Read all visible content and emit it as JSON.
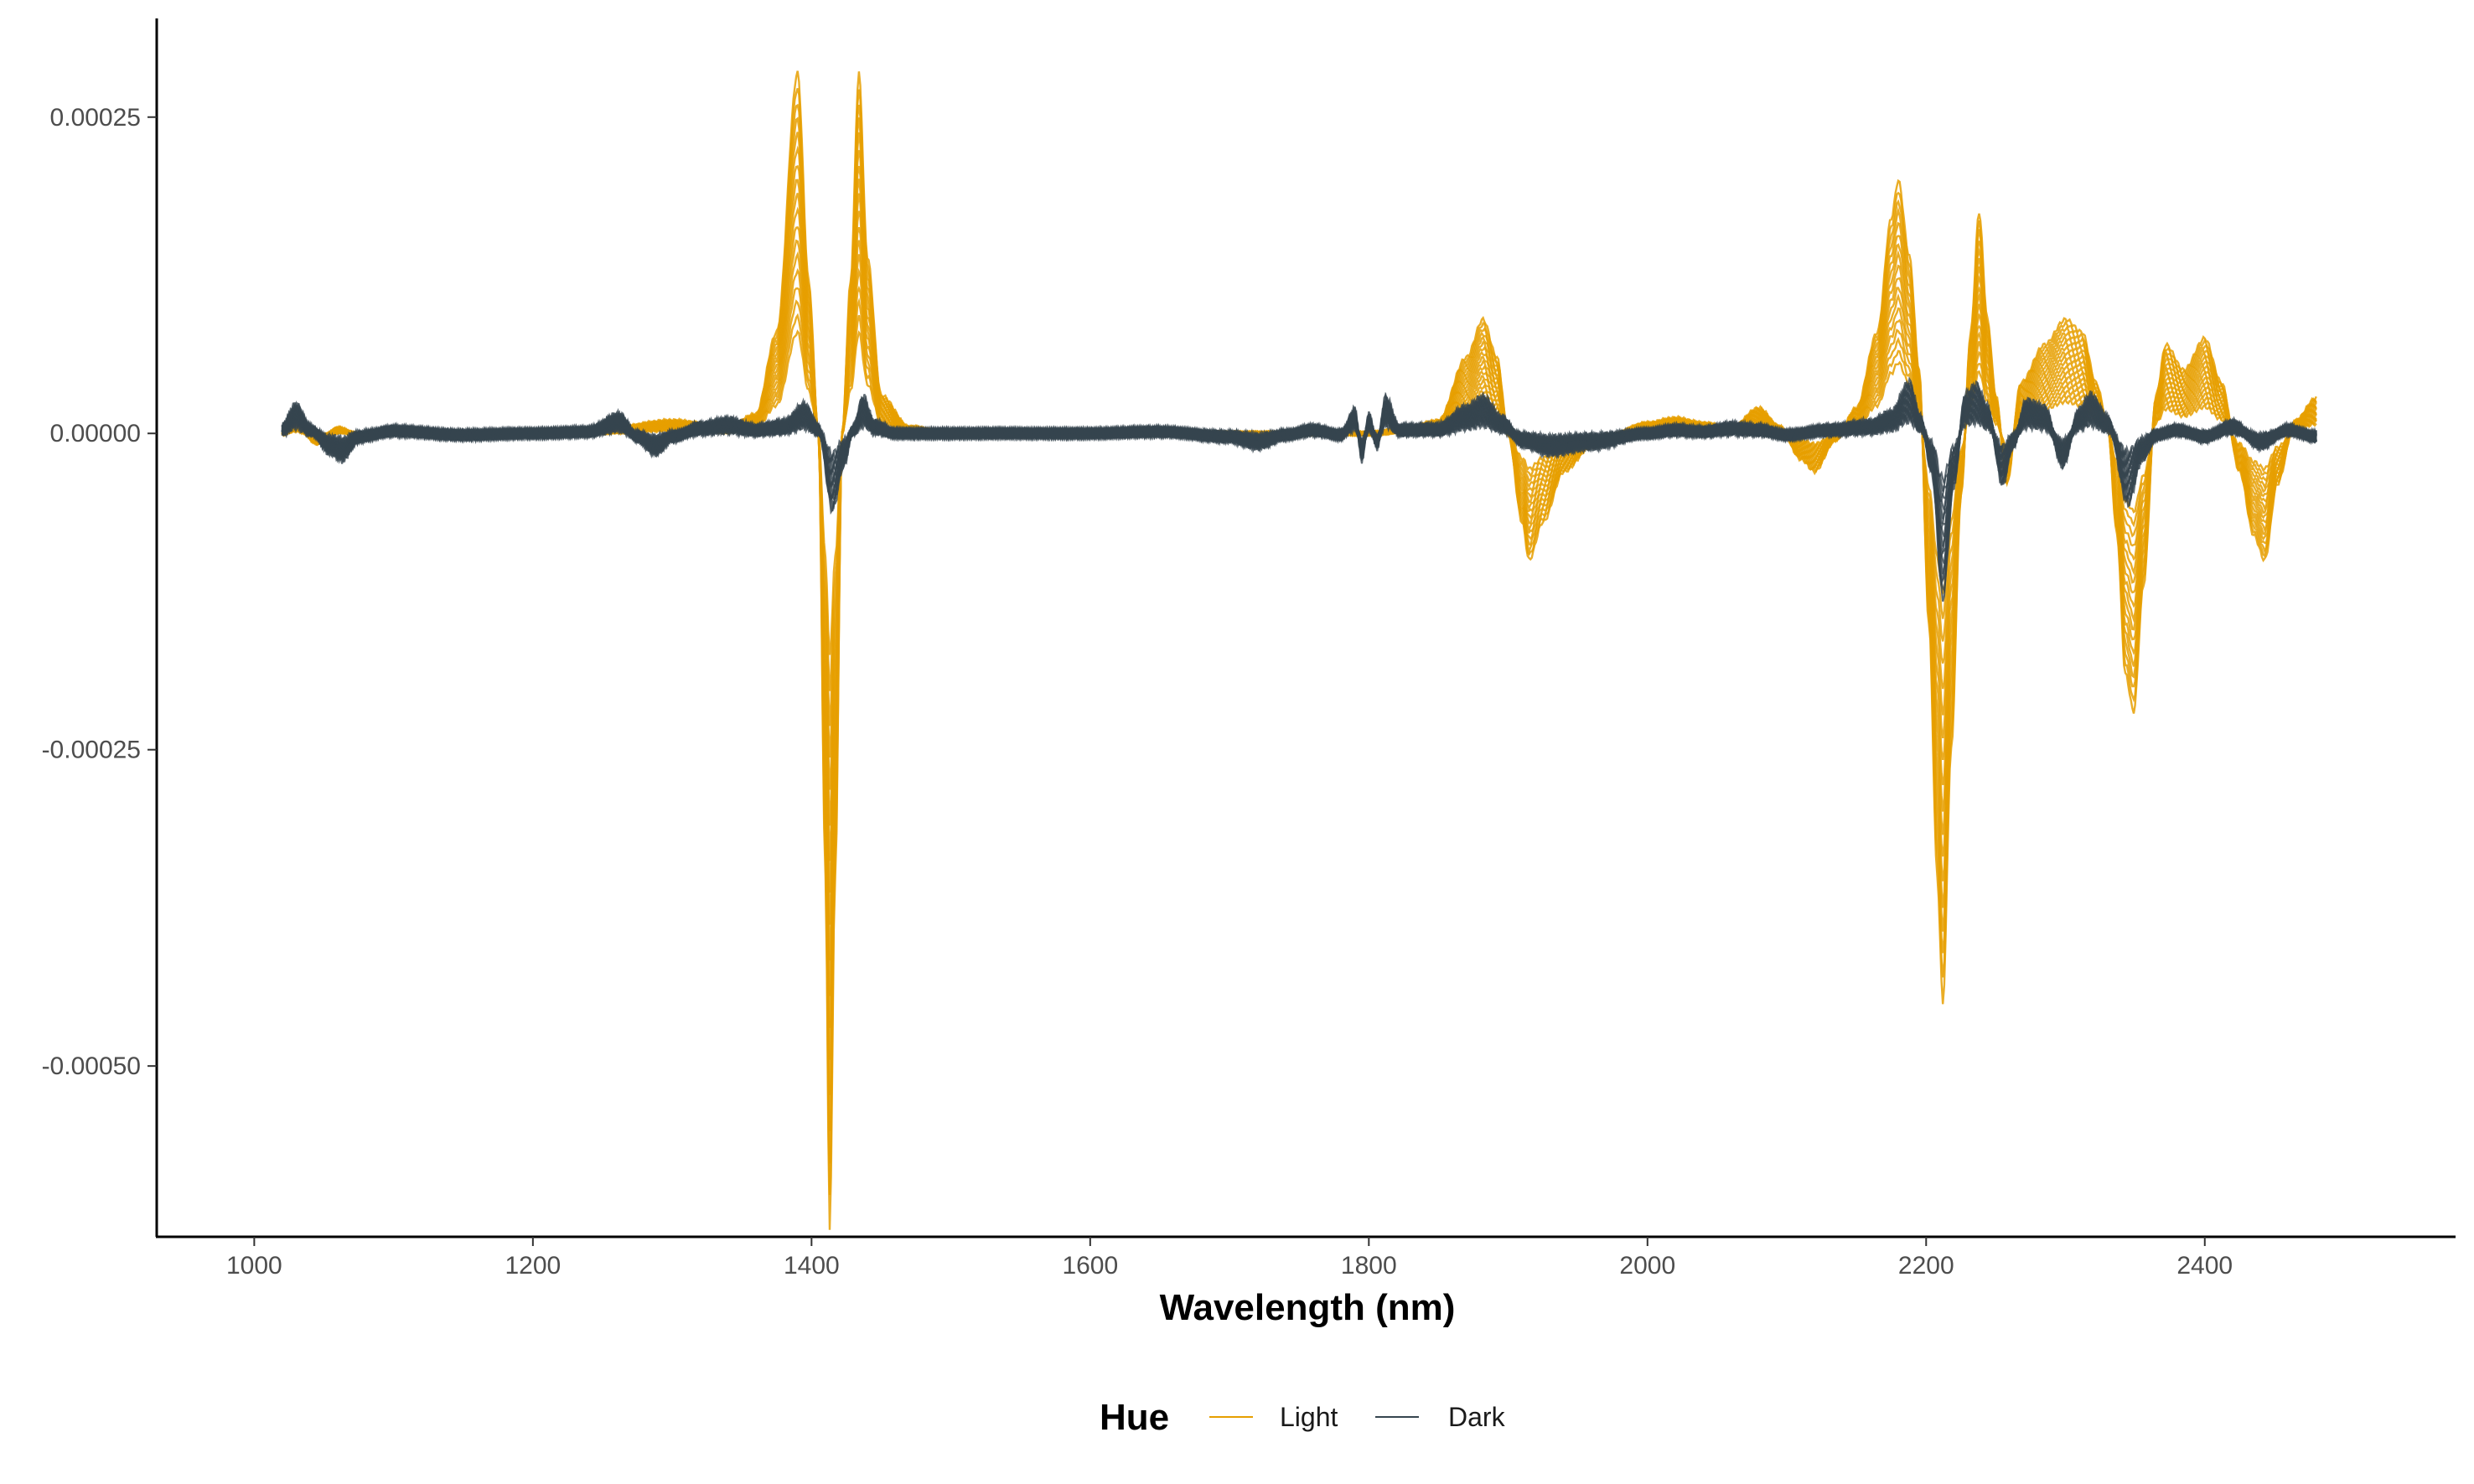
{
  "chart_data": {
    "type": "line",
    "title": "",
    "xlabel": "Wavelength (nm)",
    "ylabel": "",
    "xlim": [
      930,
      2580
    ],
    "ylim": [
      -0.000635,
      0.000328
    ],
    "x_ticks": [
      1000,
      1200,
      1400,
      1600,
      1800,
      2000,
      2200,
      2400
    ],
    "x_tick_labels": [
      "1000",
      "1200",
      "1400",
      "1600",
      "1800",
      "2000",
      "2200",
      "2400"
    ],
    "y_ticks": [
      0.00025,
      0.0,
      -0.00025,
      -0.0005
    ],
    "y_tick_labels": [
      "0.00025",
      "0.00000",
      "-0.00025",
      "-0.00050"
    ],
    "grid": false,
    "legend": {
      "title": "Hue",
      "position": "bottom",
      "entries": [
        "Light",
        "Dark"
      ]
    },
    "series": [
      {
        "name": "Light",
        "color": "#E69F00",
        "points": [
          [
            1020,
            0
          ],
          [
            1030,
            8e-06
          ],
          [
            1045,
            -8e-06
          ],
          [
            1060,
            4e-06
          ],
          [
            1080,
            -4e-06
          ],
          [
            1100,
            3e-06
          ],
          [
            1150,
            -2e-06
          ],
          [
            1200,
            2e-06
          ],
          [
            1250,
            3e-06
          ],
          [
            1300,
            1e-05
          ],
          [
            1340,
            5e-06
          ],
          [
            1360,
            1.5e-05
          ],
          [
            1375,
            8e-05
          ],
          [
            1390,
            0.000285
          ],
          [
            1398,
            0.00012
          ],
          [
            1405,
            0
          ],
          [
            1410,
            -0.00035
          ],
          [
            1413,
            -0.00063
          ],
          [
            1417,
            -0.00035
          ],
          [
            1422,
            0
          ],
          [
            1428,
            0.00012
          ],
          [
            1434,
            0.000285
          ],
          [
            1440,
            0.00014
          ],
          [
            1450,
            3e-05
          ],
          [
            1470,
            5e-06
          ],
          [
            1500,
            0
          ],
          [
            1600,
            0
          ],
          [
            1700,
            0
          ],
          [
            1760,
            0
          ],
          [
            1800,
            0
          ],
          [
            1830,
            5e-06
          ],
          [
            1850,
            1e-05
          ],
          [
            1870,
            6e-05
          ],
          [
            1882,
            9e-05
          ],
          [
            1892,
            6e-05
          ],
          [
            1900,
            0
          ],
          [
            1910,
            -7e-05
          ],
          [
            1915,
            -0.0001
          ],
          [
            1925,
            -7e-05
          ],
          [
            1940,
            -3e-05
          ],
          [
            1960,
            -1e-05
          ],
          [
            2000,
            8e-06
          ],
          [
            2020,
            1.2e-05
          ],
          [
            2040,
            8e-06
          ],
          [
            2060,
            4e-06
          ],
          [
            2080,
            2e-05
          ],
          [
            2095,
            5e-06
          ],
          [
            2110,
            -2e-05
          ],
          [
            2120,
            -3e-05
          ],
          [
            2135,
            -5e-06
          ],
          [
            2150,
            2e-05
          ],
          [
            2165,
            8e-05
          ],
          [
            2175,
            0.00017
          ],
          [
            2180,
            0.0002
          ],
          [
            2188,
            0.00014
          ],
          [
            2195,
            5e-05
          ],
          [
            2202,
            -0.00015
          ],
          [
            2208,
            -0.00035
          ],
          [
            2212,
            -0.00045
          ],
          [
            2218,
            -0.00025
          ],
          [
            2225,
            -5e-05
          ],
          [
            2232,
            8e-05
          ],
          [
            2238,
            0.000175
          ],
          [
            2244,
            9e-05
          ],
          [
            2250,
            3e-05
          ],
          [
            2258,
            -4e-05
          ],
          [
            2268,
            4e-05
          ],
          [
            2285,
            7e-05
          ],
          [
            2300,
            9e-05
          ],
          [
            2312,
            8e-05
          ],
          [
            2322,
            4e-05
          ],
          [
            2330,
            1e-05
          ],
          [
            2337,
            -8e-05
          ],
          [
            2343,
            -0.00019
          ],
          [
            2349,
            -0.00022
          ],
          [
            2356,
            -0.00012
          ],
          [
            2365,
            3e-05
          ],
          [
            2372,
            7e-05
          ],
          [
            2385,
            5e-05
          ],
          [
            2400,
            7.5e-05
          ],
          [
            2412,
            4e-05
          ],
          [
            2425,
            -3e-05
          ],
          [
            2435,
            -8e-05
          ],
          [
            2443,
            -0.0001
          ],
          [
            2452,
            -4e-05
          ],
          [
            2465,
            1e-05
          ],
          [
            2480,
            2.8e-05
          ]
        ]
      },
      {
        "name": "Dark",
        "color": "#36454F",
        "points": [
          [
            1020,
            5e-06
          ],
          [
            1030,
            2.2e-05
          ],
          [
            1040,
            4e-06
          ],
          [
            1055,
            -1.5e-05
          ],
          [
            1063,
            -2e-05
          ],
          [
            1075,
            -4e-06
          ],
          [
            1100,
            3e-06
          ],
          [
            1150,
            -2e-06
          ],
          [
            1200,
            0
          ],
          [
            1240,
            2e-06
          ],
          [
            1262,
            1.4e-05
          ],
          [
            1275,
            -4e-06
          ],
          [
            1288,
            -1.5e-05
          ],
          [
            1300,
            -4e-06
          ],
          [
            1320,
            6e-06
          ],
          [
            1340,
            1e-05
          ],
          [
            1360,
            4e-06
          ],
          [
            1380,
            8e-06
          ],
          [
            1395,
            2.2e-05
          ],
          [
            1405,
            4e-06
          ],
          [
            1415,
            -6e-05
          ],
          [
            1423,
            -2.5e-05
          ],
          [
            1430,
            4e-06
          ],
          [
            1437,
            2.8e-05
          ],
          [
            1445,
            8e-06
          ],
          [
            1460,
            0
          ],
          [
            1500,
            0
          ],
          [
            1600,
            0
          ],
          [
            1650,
            2e-06
          ],
          [
            1700,
            -4e-06
          ],
          [
            1720,
            -1e-05
          ],
          [
            1740,
            -2e-06
          ],
          [
            1760,
            4e-06
          ],
          [
            1780,
            -2e-06
          ],
          [
            1790,
            1.8e-05
          ],
          [
            1795,
            -2e-05
          ],
          [
            1800,
            1.4e-05
          ],
          [
            1806,
            -1e-05
          ],
          [
            1812,
            2.8e-05
          ],
          [
            1822,
            4e-06
          ],
          [
            1850,
            5e-06
          ],
          [
            1870,
            2e-05
          ],
          [
            1882,
            2.8e-05
          ],
          [
            1895,
            1.2e-05
          ],
          [
            1910,
            -8e-06
          ],
          [
            1930,
            -1.5e-05
          ],
          [
            1960,
            -1e-05
          ],
          [
            2000,
            0
          ],
          [
            2020,
            4e-06
          ],
          [
            2040,
            2e-06
          ],
          [
            2060,
            6e-06
          ],
          [
            2080,
            4e-06
          ],
          [
            2100,
            -2e-06
          ],
          [
            2130,
            4e-06
          ],
          [
            2160,
            8e-06
          ],
          [
            2175,
            1.6e-05
          ],
          [
            2188,
            4e-05
          ],
          [
            2196,
            1.2e-05
          ],
          [
            2204,
            -3e-05
          ],
          [
            2212,
            -0.00013
          ],
          [
            2220,
            -4e-05
          ],
          [
            2228,
            3e-05
          ],
          [
            2236,
            3.8e-05
          ],
          [
            2244,
            2e-05
          ],
          [
            2255,
            -4e-05
          ],
          [
            2262,
            -1e-05
          ],
          [
            2272,
            2.5e-05
          ],
          [
            2285,
            2e-05
          ],
          [
            2298,
            -2.5e-05
          ],
          [
            2310,
            1.8e-05
          ],
          [
            2318,
            3e-05
          ],
          [
            2330,
            1.2e-05
          ],
          [
            2345,
            -5.5e-05
          ],
          [
            2355,
            -2e-05
          ],
          [
            2365,
            -2e-06
          ],
          [
            2380,
            4e-06
          ],
          [
            2400,
            -4e-06
          ],
          [
            2420,
            8e-06
          ],
          [
            2440,
            -1e-05
          ],
          [
            2460,
            4e-06
          ],
          [
            2480,
            -4e-06
          ]
        ]
      }
    ]
  }
}
